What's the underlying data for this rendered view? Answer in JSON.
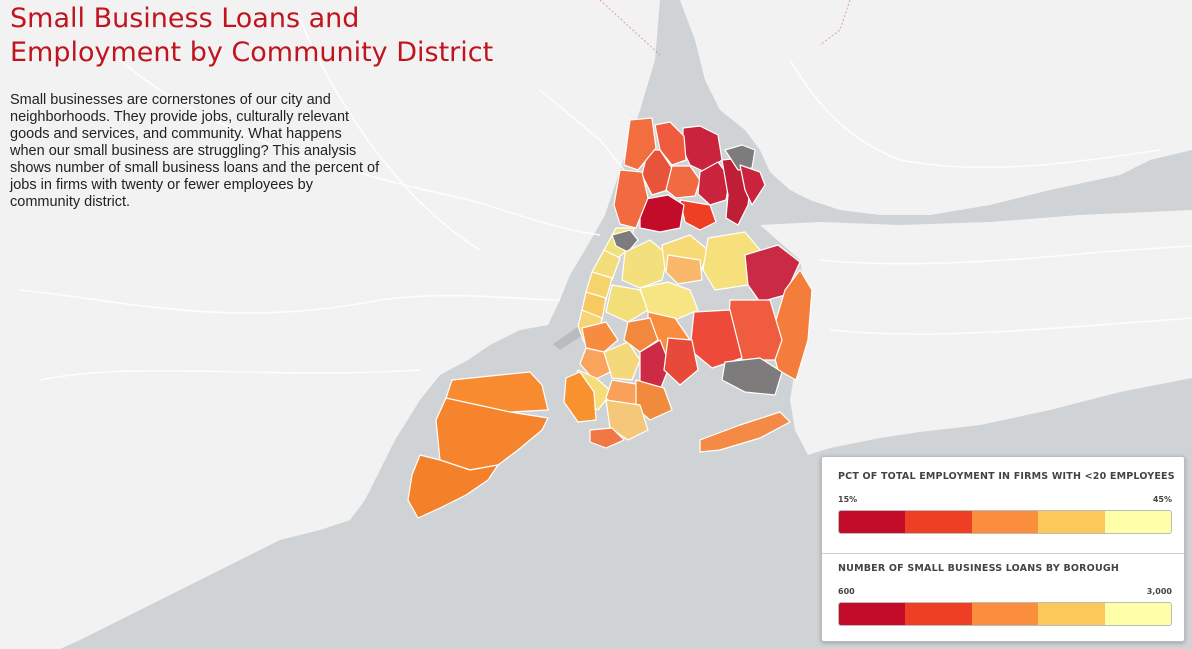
{
  "title": "Small Business Loans and Employment by Community District",
  "description": "Small businesses are cornerstones of our city and neighborhoods. They provide jobs, culturally relevant goods and services, and community. What happens when our small business are struggling? This analysis shows number of small business loans and the percent of jobs in firms with twenty or fewer employees by community district.",
  "legend": {
    "employment": {
      "title": "PCT OF TOTAL EMPLOYMENT IN FIRMS WITH <20 EMPLOYEES",
      "min": "15%",
      "max": "45%"
    },
    "loans": {
      "title": "NUMBER OF SMALL BUSINESS LOANS BY BOROUGH",
      "min": "600",
      "max": "3,000"
    },
    "colors": [
      "#c20c2a",
      "#ee3e24",
      "#fb8e3c",
      "#fdc85a",
      "#ffffa8"
    ]
  },
  "map": {
    "land_color": "#f2f2f2",
    "water_color": "#d0d3d6",
    "no_data_color": "#7d7b7c",
    "districts": [
      {
        "borough": "Bronx",
        "fill": "#c9233d"
      },
      {
        "borough": "Bronx",
        "fill": "#f05a3e"
      },
      {
        "borough": "Bronx",
        "fill": "#e8543a"
      },
      {
        "borough": "Bronx",
        "fill": "#f06a42"
      },
      {
        "borough": "Bronx",
        "fill": "#c9233d"
      },
      {
        "borough": "Bronx",
        "fill": "#c01d36"
      },
      {
        "borough": "Bronx",
        "fill": "#ee3e24"
      },
      {
        "borough": "Bronx",
        "fill": "#c20c2a"
      },
      {
        "borough": "Bronx",
        "fill": "#f26a3f"
      },
      {
        "borough": "Bronx",
        "fill": "#7d7b7c"
      },
      {
        "borough": "Bronx",
        "fill": "#c9233d"
      },
      {
        "borough": "Bronx",
        "fill": "#f36e3f"
      },
      {
        "borough": "Manhattan",
        "fill": "#f0e27a"
      },
      {
        "borough": "Manhattan",
        "fill": "#f3dd7b"
      },
      {
        "borough": "Manhattan",
        "fill": "#f5d46e"
      },
      {
        "borough": "Manhattan",
        "fill": "#f8c862"
      },
      {
        "borough": "Manhattan",
        "fill": "#f5d575"
      },
      {
        "borough": "Manhattan",
        "fill": "#7d7b7c"
      },
      {
        "borough": "Queens",
        "fill": "#f3df7c"
      },
      {
        "borough": "Queens",
        "fill": "#f5da76"
      },
      {
        "borough": "Queens",
        "fill": "#f8b76a"
      },
      {
        "borough": "Queens",
        "fill": "#f2df7a"
      },
      {
        "borough": "Queens",
        "fill": "#f7e584"
      },
      {
        "borough": "Queens",
        "fill": "#f5e07c"
      },
      {
        "borough": "Queens",
        "fill": "#cb2a45"
      },
      {
        "borough": "Queens",
        "fill": "#f57d3c"
      },
      {
        "borough": "Queens",
        "fill": "#f05c40"
      },
      {
        "borough": "Queens",
        "fill": "#ee4a3a"
      },
      {
        "borough": "Queens",
        "fill": "#f58a46"
      },
      {
        "borough": "Queens",
        "fill": "#f98d3d"
      },
      {
        "borough": "Queens",
        "fill": "#7d7b7c"
      },
      {
        "borough": "Brooklyn",
        "fill": "#f78b3f"
      },
      {
        "borough": "Brooklyn",
        "fill": "#f9a35c"
      },
      {
        "borough": "Brooklyn",
        "fill": "#f5d87a"
      },
      {
        "borough": "Brooklyn",
        "fill": "#f2883e"
      },
      {
        "borough": "Brooklyn",
        "fill": "#cc2a45"
      },
      {
        "borough": "Brooklyn",
        "fill": "#e84a3a"
      },
      {
        "borough": "Brooklyn",
        "fill": "#f5dd7c"
      },
      {
        "borough": "Brooklyn",
        "fill": "#f9a15a"
      },
      {
        "borough": "Brooklyn",
        "fill": "#f28a3e"
      },
      {
        "borough": "Brooklyn",
        "fill": "#f4c878"
      },
      {
        "borough": "Brooklyn",
        "fill": "#f8922e"
      },
      {
        "borough": "Brooklyn",
        "fill": "#f07844"
      },
      {
        "borough": "Staten Island",
        "fill": "#f88a30"
      },
      {
        "borough": "Staten Island",
        "fill": "#f6842c"
      },
      {
        "borough": "Staten Island",
        "fill": "#f4802a"
      }
    ]
  }
}
